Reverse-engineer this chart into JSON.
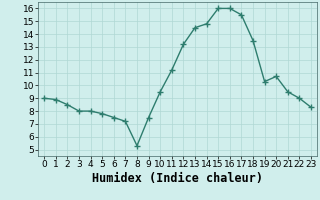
{
  "x": [
    0,
    1,
    2,
    3,
    4,
    5,
    6,
    7,
    8,
    9,
    10,
    11,
    12,
    13,
    14,
    15,
    16,
    17,
    18,
    19,
    20,
    21,
    22,
    23
  ],
  "y": [
    9.0,
    8.9,
    8.5,
    8.0,
    8.0,
    7.8,
    7.5,
    7.2,
    5.3,
    7.5,
    9.5,
    11.2,
    13.2,
    14.5,
    14.8,
    16.0,
    16.0,
    15.5,
    13.5,
    10.3,
    10.7,
    9.5,
    9.0,
    8.3
  ],
  "line_color": "#2e7d6e",
  "marker_color": "#2e7d6e",
  "bg_color": "#d0eeec",
  "grid_color": "#b0d8d4",
  "xlabel": "Humidex (Indice chaleur)",
  "xlim": [
    -0.5,
    23.5
  ],
  "ylim": [
    4.5,
    16.5
  ],
  "yticks": [
    5,
    6,
    7,
    8,
    9,
    10,
    11,
    12,
    13,
    14,
    15,
    16
  ],
  "xticks": [
    0,
    1,
    2,
    3,
    4,
    5,
    6,
    7,
    8,
    9,
    10,
    11,
    12,
    13,
    14,
    15,
    16,
    17,
    18,
    19,
    20,
    21,
    22,
    23
  ],
  "tick_fontsize": 6.5,
  "xlabel_fontsize": 8.5,
  "marker_size": 2.5,
  "line_width": 1.0
}
